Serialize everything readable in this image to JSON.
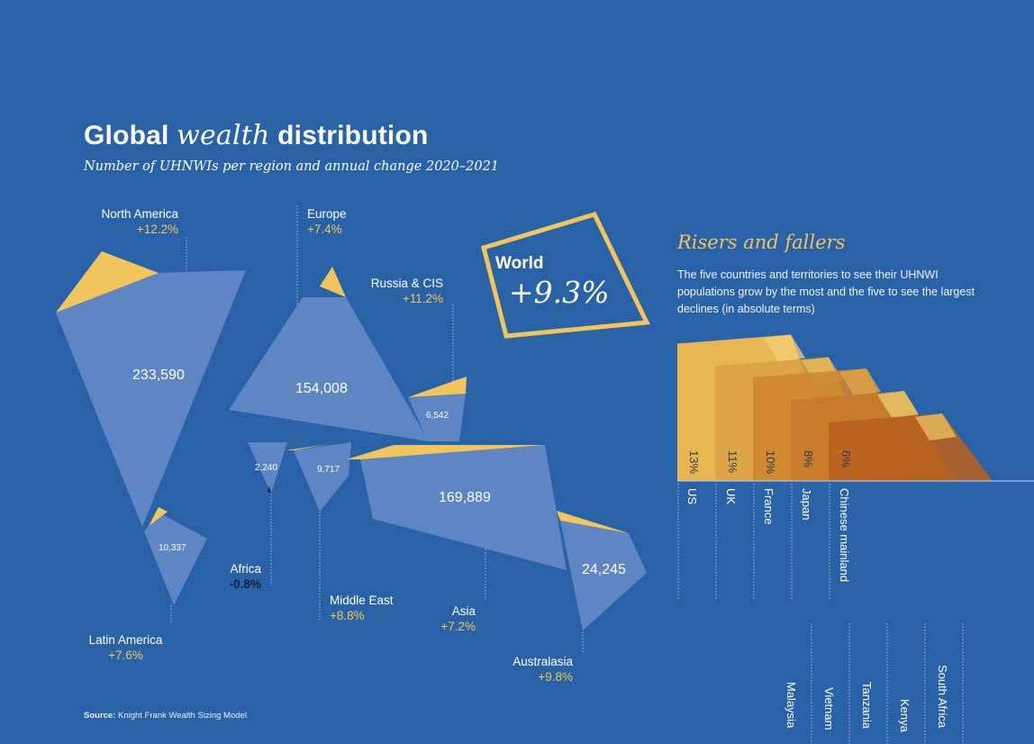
{
  "title": {
    "part1": "Global",
    "part2": "wealth",
    "part3": "distribution"
  },
  "subtitle": "Number of UHNWIs per region and annual change 2020–2021",
  "colors": {
    "background": "#2a62a8",
    "shape": "#5d86c3",
    "accent": "#f0c65c",
    "dark": "#10203a"
  },
  "world": {
    "label": "World",
    "value": "+9.3%"
  },
  "chart_data": {
    "type": "table",
    "title": "Global wealth distribution",
    "regions": [
      {
        "name": "North America",
        "change": "+12.2%",
        "uhnwi": "233,590"
      },
      {
        "name": "Europe",
        "change": "+7.4%",
        "uhnwi": "154,008"
      },
      {
        "name": "Russia & CIS",
        "change": "+11.2%",
        "uhnwi": "6,542"
      },
      {
        "name": "Latin America",
        "change": "+7.6%",
        "uhnwi": "10,337"
      },
      {
        "name": "Africa",
        "change": "-0.8%",
        "uhnwi": "2,240"
      },
      {
        "name": "Middle East",
        "change": "+8.8%",
        "uhnwi": "9,717"
      },
      {
        "name": "Asia",
        "change": "+7.2%",
        "uhnwi": "169,889"
      },
      {
        "name": "Australasia",
        "change": "+9.8%",
        "uhnwi": "24,245"
      }
    ],
    "risers": [
      {
        "country": "US",
        "change": "13%",
        "value": 13
      },
      {
        "country": "UK",
        "change": "11%",
        "value": 11
      },
      {
        "country": "France",
        "change": "10%",
        "value": 10
      },
      {
        "country": "Japan",
        "change": "8%",
        "value": 8
      },
      {
        "country": "Chinese mainland",
        "change": "6%",
        "value": 6
      }
    ],
    "fallers": [
      "Malaysia",
      "Vietnam",
      "Tanzania",
      "Kenya",
      "South Africa"
    ]
  },
  "risers_fallers": {
    "title": "Risers and fallers",
    "description": "The five countries and territories to see their UHNWI populations grow by the most and the five to see the largest declines (in absolute terms)"
  },
  "source": {
    "label": "Source:",
    "text": " Knight Frank Wealth Sizing Model"
  }
}
